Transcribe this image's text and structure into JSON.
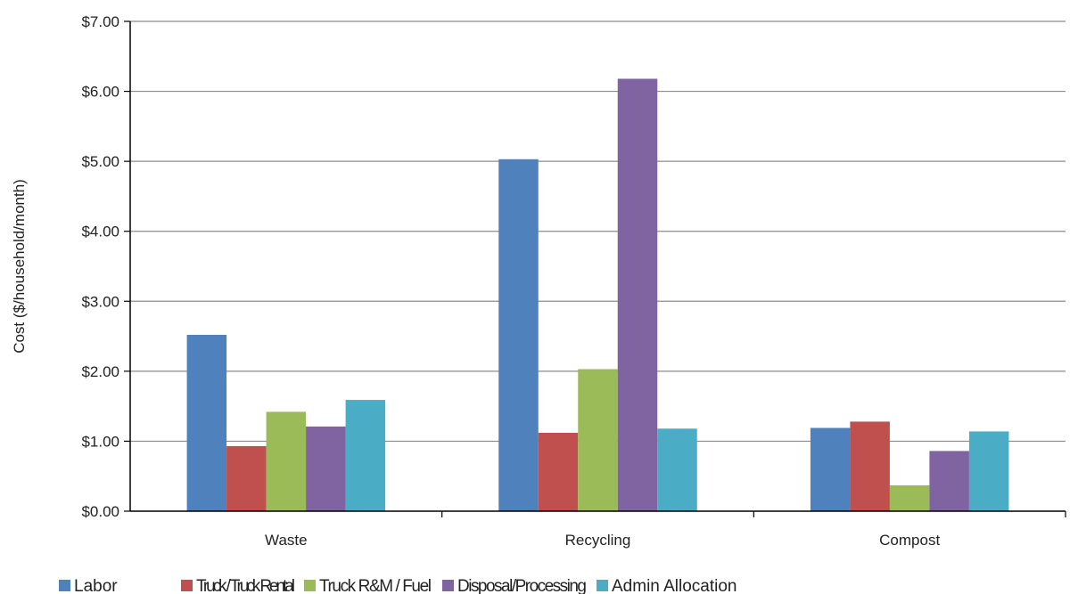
{
  "chart_data": {
    "type": "bar",
    "title": "",
    "xlabel": "",
    "ylabel": "Cost ($/household/month)",
    "ylim": [
      0,
      7
    ],
    "ytick_step": 1,
    "ytick_labels": [
      "$0.00",
      "$1.00",
      "$2.00",
      "$3.00",
      "$4.00",
      "$5.00",
      "$6.00",
      "$7.00"
    ],
    "grid": true,
    "legend_position": "bottom",
    "categories": [
      "Waste",
      "Recycling",
      "Compost"
    ],
    "series": [
      {
        "name": "Labor",
        "color": "#4F81BD",
        "values": [
          2.52,
          5.03,
          1.19
        ]
      },
      {
        "name": "Truck / Truck Rental",
        "color": "#C0504D",
        "values": [
          0.93,
          1.12,
          1.28
        ]
      },
      {
        "name": "Truck R&M / Fuel",
        "color": "#9BBB59",
        "values": [
          1.42,
          2.03,
          0.37
        ]
      },
      {
        "name": "Disposal/Processing",
        "color": "#8064A2",
        "values": [
          1.21,
          6.18,
          0.86
        ]
      },
      {
        "name": "Admin Allocation",
        "color": "#4BACC6",
        "values": [
          1.59,
          1.18,
          1.14
        ]
      }
    ]
  }
}
